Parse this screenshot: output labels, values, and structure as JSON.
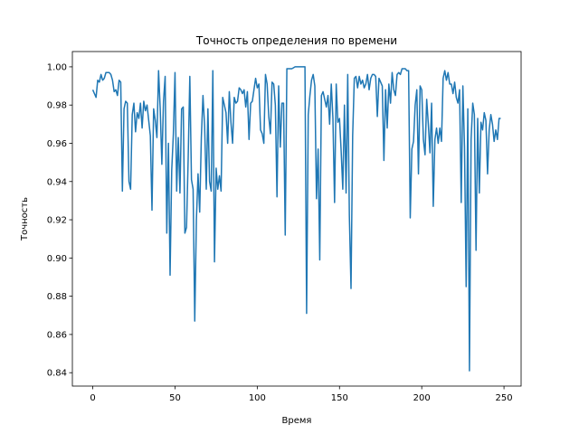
{
  "chart_data": {
    "type": "line",
    "title": "Точность определения по времени",
    "x_label": "Время",
    "y_label": "Точность",
    "x": [
      0,
      1,
      2,
      3,
      4,
      5,
      6,
      7,
      8,
      9,
      10,
      11,
      12,
      13,
      14,
      15,
      16,
      17,
      18,
      19,
      20,
      21,
      22,
      23,
      24,
      25,
      26,
      27,
      28,
      29,
      30,
      31,
      32,
      33,
      34,
      35,
      36,
      37,
      38,
      39,
      40,
      41,
      42,
      43,
      44,
      45,
      46,
      47,
      48,
      49,
      50,
      51,
      52,
      53,
      54,
      55,
      56,
      57,
      58,
      59,
      60,
      61,
      62,
      63,
      64,
      65,
      66,
      67,
      68,
      69,
      70,
      71,
      72,
      73,
      74,
      75,
      76,
      77,
      78,
      79,
      80,
      81,
      82,
      83,
      84,
      85,
      86,
      87,
      88,
      89,
      90,
      91,
      92,
      93,
      94,
      95,
      96,
      97,
      98,
      99,
      100,
      101,
      102,
      103,
      104,
      105,
      106,
      107,
      108,
      109,
      110,
      111,
      112,
      113,
      114,
      115,
      116,
      117,
      118,
      119,
      120,
      121,
      122,
      123,
      124,
      125,
      126,
      127,
      128,
      129,
      130,
      131,
      132,
      133,
      134,
      135,
      136,
      137,
      138,
      139,
      140,
      141,
      142,
      143,
      144,
      145,
      146,
      147,
      148,
      149,
      150,
      151,
      152,
      153,
      154,
      155,
      156,
      157,
      158,
      159,
      160,
      161,
      162,
      163,
      164,
      165,
      166,
      167,
      168,
      169,
      170,
      171,
      172,
      173,
      174,
      175,
      176,
      177,
      178,
      179,
      180,
      181,
      182,
      183,
      184,
      185,
      186,
      187,
      188,
      189,
      190,
      191,
      192,
      193,
      194,
      195,
      196,
      197,
      198,
      199,
      200,
      201,
      202,
      203,
      204,
      205,
      206,
      207,
      208,
      209,
      210,
      211,
      212,
      213,
      214,
      215,
      216,
      217,
      218,
      219,
      220,
      221,
      222,
      223,
      224,
      225,
      226,
      227,
      228,
      229,
      230,
      231,
      232,
      233,
      234,
      235,
      236,
      237,
      238,
      239,
      240,
      241,
      242,
      243,
      244,
      245,
      246,
      247,
      248
    ],
    "series": [
      {
        "color": "#1f77b4",
        "values": [
          0.988,
          0.986,
          0.984,
          0.993,
          0.992,
          0.996,
          0.993,
          0.994,
          0.997,
          0.997,
          0.997,
          0.996,
          0.993,
          0.987,
          0.988,
          0.985,
          0.993,
          0.992,
          0.935,
          0.978,
          0.982,
          0.981,
          0.94,
          0.936,
          0.975,
          0.981,
          0.966,
          0.976,
          0.973,
          0.981,
          0.968,
          0.982,
          0.977,
          0.98,
          0.972,
          0.964,
          0.925,
          0.978,
          0.972,
          0.963,
          0.998,
          0.978,
          0.949,
          0.982,
          0.995,
          0.913,
          0.96,
          0.891,
          0.946,
          0.965,
          0.997,
          0.935,
          0.963,
          0.934,
          0.978,
          0.979,
          0.913,
          0.916,
          0.952,
          0.995,
          0.941,
          0.936,
          0.867,
          0.92,
          0.944,
          0.924,
          0.963,
          0.985,
          0.969,
          0.936,
          0.978,
          0.94,
          0.935,
          0.998,
          0.898,
          0.947,
          0.936,
          0.943,
          0.935,
          0.984,
          0.98,
          0.976,
          0.96,
          0.987,
          0.971,
          0.96,
          0.984,
          0.981,
          0.982,
          0.989,
          0.988,
          0.986,
          0.988,
          0.979,
          0.987,
          0.962,
          0.981,
          0.982,
          0.988,
          0.994,
          0.989,
          0.991,
          0.967,
          0.965,
          0.96,
          0.996,
          0.991,
          0.974,
          0.965,
          0.992,
          0.991,
          0.98,
          0.932,
          0.99,
          0.958,
          0.981,
          0.981,
          0.912,
          0.999,
          0.999,
          0.999,
          0.999,
          0.9995,
          1.0,
          1.0,
          1.0,
          1.0,
          1.0,
          1.0,
          1.0,
          0.871,
          0.975,
          0.985,
          0.993,
          0.996,
          0.99,
          0.931,
          0.957,
          0.899,
          0.985,
          0.987,
          0.983,
          0.979,
          0.985,
          0.97,
          0.991,
          0.973,
          0.929,
          0.991,
          0.971,
          0.973,
          0.956,
          0.936,
          0.98,
          0.934,
          0.996,
          0.922,
          0.884,
          0.964,
          0.994,
          0.995,
          0.989,
          0.995,
          0.991,
          0.993,
          0.989,
          0.991,
          0.996,
          0.988,
          0.994,
          0.996,
          0.996,
          0.995,
          0.974,
          0.994,
          0.992,
          0.99,
          0.951,
          0.988,
          0.968,
          0.991,
          0.981,
          0.997,
          0.988,
          0.985,
          0.996,
          0.997,
          0.996,
          0.999,
          0.999,
          0.999,
          0.998,
          0.998,
          0.921,
          0.957,
          0.961,
          0.98,
          0.988,
          0.944,
          0.99,
          0.988,
          0.962,
          0.954,
          0.983,
          0.97,
          0.955,
          0.981,
          0.927,
          0.962,
          0.968,
          0.96,
          0.968,
          0.961,
          0.994,
          0.998,
          0.993,
          0.997,
          0.991,
          0.991,
          0.986,
          0.992,
          0.984,
          0.981,
          0.988,
          0.929,
          0.99,
          0.958,
          0.885,
          0.978,
          0.841,
          0.962,
          0.981,
          0.975,
          0.904,
          0.973,
          0.934,
          0.971,
          0.967,
          0.976,
          0.972,
          0.944,
          0.967,
          0.975,
          0.97,
          0.961,
          0.967,
          0.962,
          0.973,
          0.973
        ]
      }
    ],
    "xlim": [
      -12.4,
      260.4
    ],
    "ylim": [
      0.833,
      1.008
    ],
    "xticks": [
      0,
      50,
      100,
      150,
      200,
      250
    ],
    "yticks": [
      0.84,
      0.86,
      0.88,
      {
        "value": 0.9,
        "label": "0.90"
      },
      0.92,
      0.94,
      0.96,
      0.98,
      {
        "value": 1.0,
        "label": "1.00"
      }
    ]
  }
}
